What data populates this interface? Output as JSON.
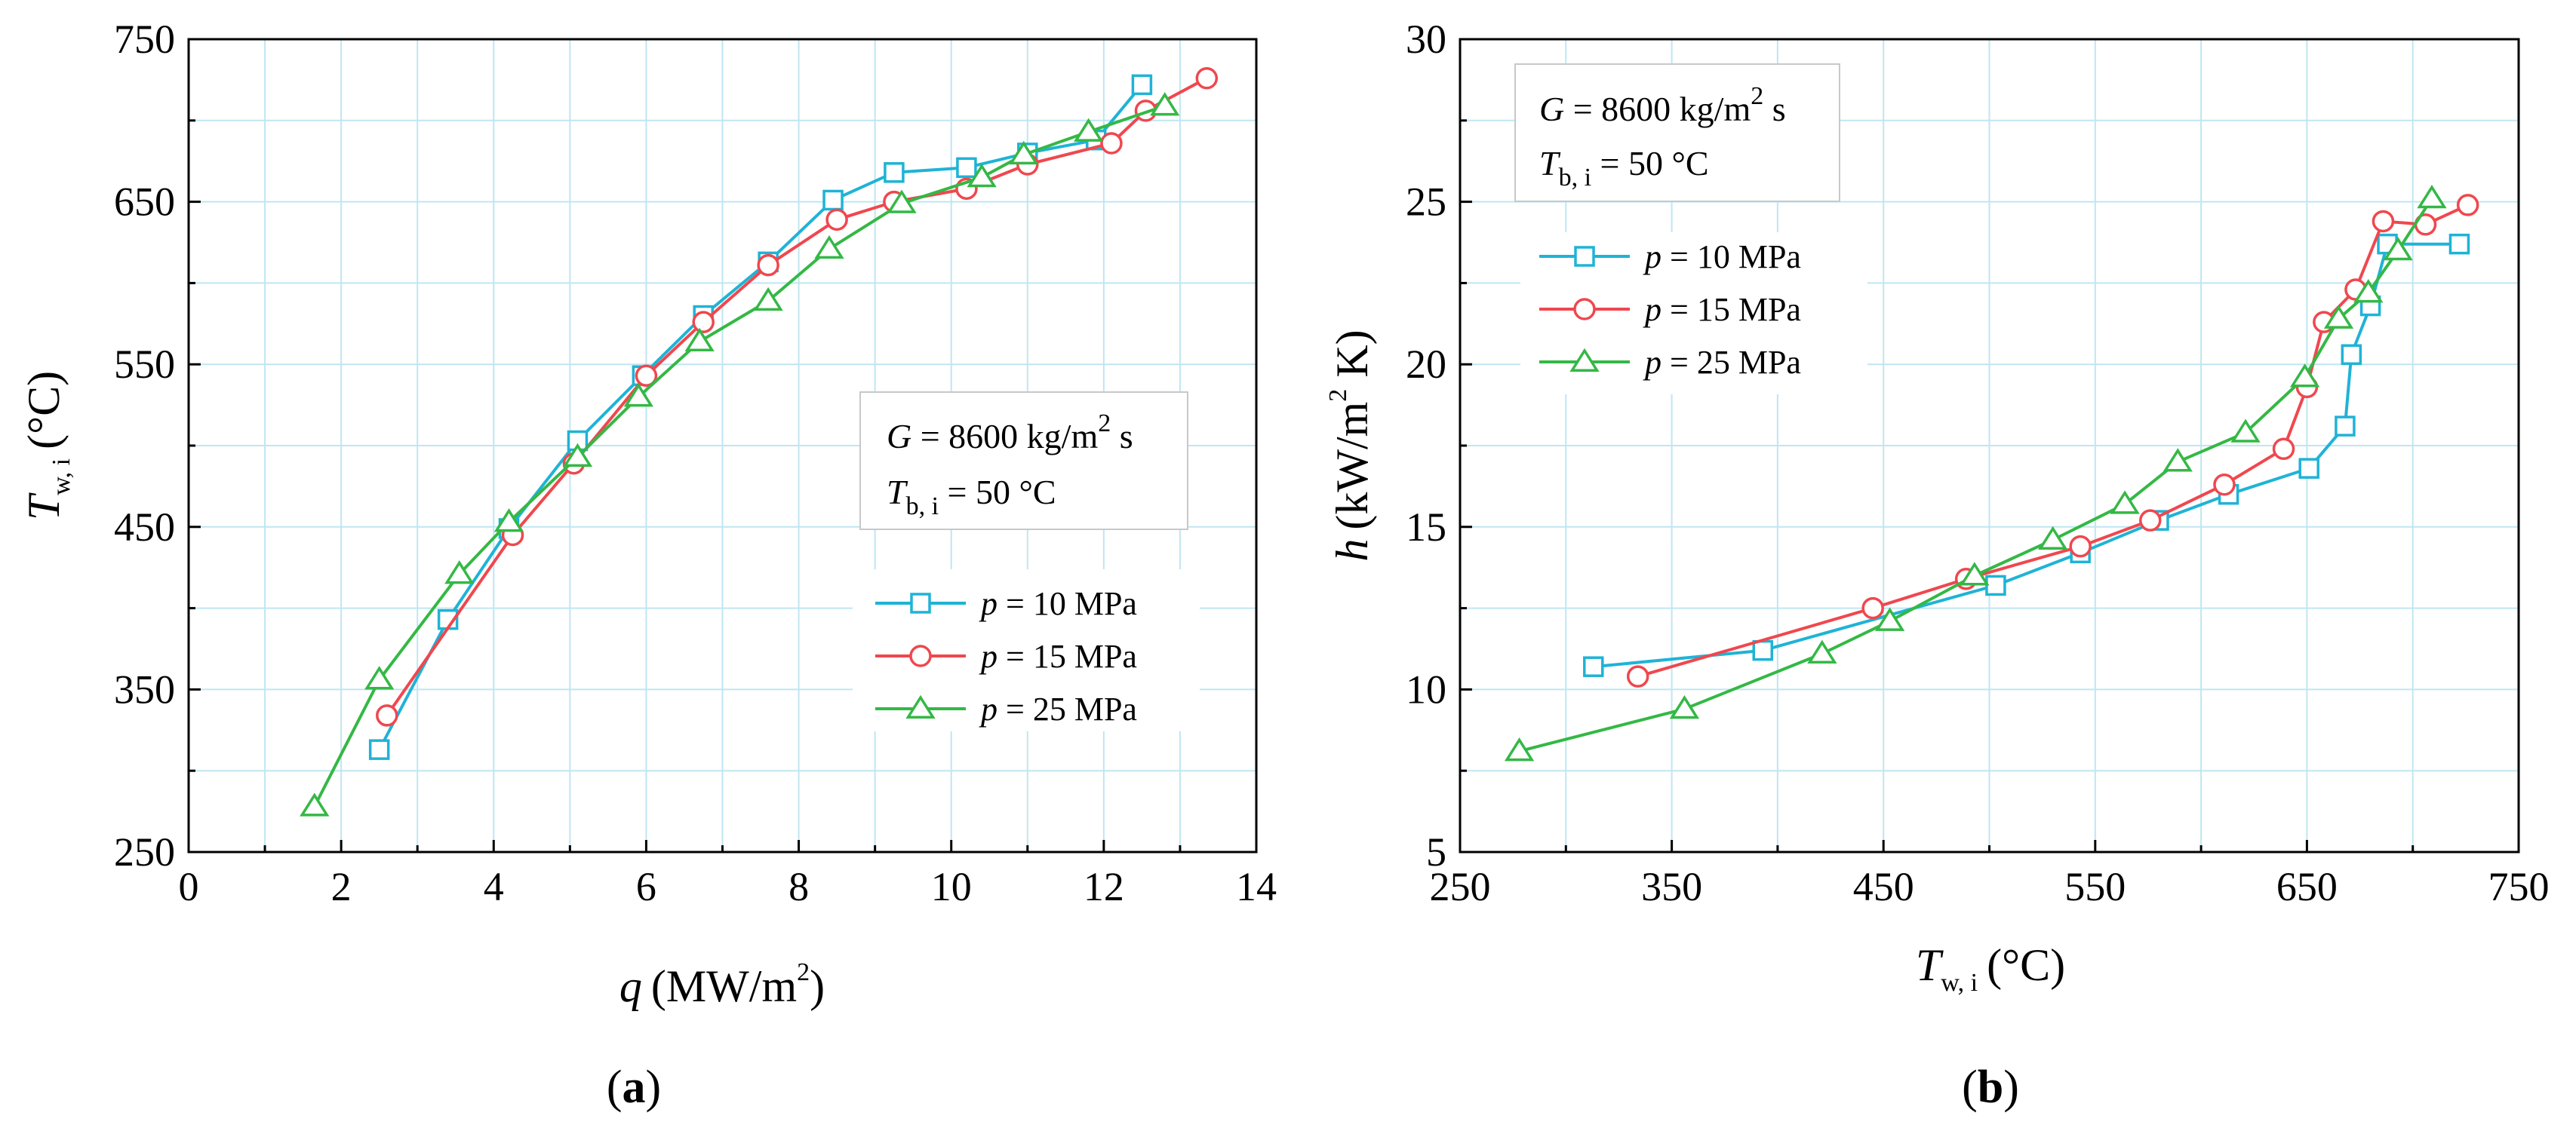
{
  "chart_data": [
    {
      "type": "line",
      "panel": "(a)",
      "panel_letter": "a",
      "xlabel": {
        "var": "q",
        "unit": "(MW/m",
        "sup": "2",
        "close": ")"
      },
      "ylabel": {
        "var": "T",
        "sub": "w, i",
        "unit": "(°C)"
      },
      "xlim": [
        0,
        14
      ],
      "ylim": [
        250,
        750
      ],
      "xticks": [
        0,
        2,
        4,
        6,
        8,
        10,
        12,
        14
      ],
      "yticks": [
        250,
        350,
        450,
        550,
        650,
        750
      ],
      "grid": true,
      "legend_position": "lower-right",
      "condition_box_position": "middle-right",
      "series": [
        {
          "name": "p = 10 MPa",
          "p_label": "p",
          "rest_label": " = 10 MPa",
          "color": "#1fb3d6",
          "marker": "square",
          "points": [
            [
              2.5,
              313
            ],
            [
              3.4,
              393
            ],
            [
              4.2,
              449
            ],
            [
              5.1,
              503
            ],
            [
              5.95,
              543
            ],
            [
              6.75,
              580
            ],
            [
              7.6,
              613
            ],
            [
              8.45,
              651
            ],
            [
              9.25,
              668
            ],
            [
              10.2,
              671
            ],
            [
              11.0,
              680
            ],
            [
              11.9,
              688
            ],
            [
              12.5,
              722
            ]
          ]
        },
        {
          "name": "p = 15 MPa",
          "p_label": "p",
          "rest_label": " = 15 MPa",
          "color": "#f0474e",
          "marker": "circle",
          "points": [
            [
              2.6,
              334
            ],
            [
              4.25,
              445
            ],
            [
              5.05,
              489
            ],
            [
              6.0,
              543
            ],
            [
              6.75,
              576
            ],
            [
              7.6,
              611
            ],
            [
              8.5,
              639
            ],
            [
              9.25,
              650
            ],
            [
              10.2,
              658
            ],
            [
              11.0,
              673
            ],
            [
              12.1,
              686
            ],
            [
              12.55,
              706
            ],
            [
              13.35,
              726
            ]
          ]
        },
        {
          "name": "p = 25 MPa",
          "p_label": "p",
          "rest_label": " = 25 MPa",
          "color": "#34b845",
          "marker": "triangle",
          "points": [
            [
              1.65,
              278
            ],
            [
              2.5,
              356
            ],
            [
              3.55,
              421
            ],
            [
              4.2,
              453
            ],
            [
              5.1,
              493
            ],
            [
              5.9,
              530
            ],
            [
              6.7,
              564
            ],
            [
              7.6,
              589
            ],
            [
              8.4,
              621
            ],
            [
              9.35,
              649
            ],
            [
              10.4,
              665
            ],
            [
              10.95,
              679
            ],
            [
              11.8,
              693
            ],
            [
              12.8,
              709
            ]
          ]
        }
      ],
      "annotation": {
        "G_var": "G",
        "G_text": " = 8600 kg/m",
        "G_sup": "2",
        "G_tail": " s",
        "T_var": "T",
        "T_sub": "b, i",
        "T_text": " = 50 °C"
      }
    },
    {
      "type": "line",
      "panel": "(b)",
      "panel_letter": "b",
      "xlabel": {
        "var": "T",
        "sub": "w, i",
        "unit": "(°C)"
      },
      "ylabel": {
        "var": "h",
        "unit": "(kW/m",
        "sup": "2",
        "close": " K)"
      },
      "xlim": [
        250,
        750
      ],
      "ylim": [
        5,
        30
      ],
      "xticks": [
        250,
        350,
        450,
        550,
        650,
        750
      ],
      "yticks": [
        5,
        10,
        15,
        20,
        25,
        30
      ],
      "grid": true,
      "legend_position": "upper-left",
      "condition_box_position": "top-left",
      "series": [
        {
          "name": "p = 10 MPa",
          "p_label": "p",
          "rest_label": " = 10 MPa",
          "color": "#1fb3d6",
          "marker": "square",
          "points": [
            [
              313,
              10.7
            ],
            [
              393,
              11.2
            ],
            [
              503,
              13.2
            ],
            [
              543,
              14.2
            ],
            [
              580,
              15.2
            ],
            [
              613,
              16.0
            ],
            [
              651,
              16.8
            ],
            [
              668,
              18.1
            ],
            [
              671,
              20.3
            ],
            [
              680,
              21.8
            ],
            [
              688,
              23.7
            ],
            [
              722,
              23.7
            ]
          ]
        },
        {
          "name": "p = 15 MPa",
          "p_label": "p",
          "rest_label": " = 15 MPa",
          "color": "#f0474e",
          "marker": "circle",
          "points": [
            [
              334,
              10.4
            ],
            [
              445,
              12.5
            ],
            [
              489,
              13.4
            ],
            [
              543,
              14.4
            ],
            [
              576,
              15.2
            ],
            [
              611,
              16.3
            ],
            [
              639,
              17.4
            ],
            [
              650,
              19.3
            ],
            [
              658,
              21.3
            ],
            [
              673,
              22.3
            ],
            [
              686,
              24.4
            ],
            [
              706,
              24.3
            ],
            [
              726,
              24.9
            ]
          ]
        },
        {
          "name": "p = 25 MPa",
          "p_label": "p",
          "rest_label": " = 25 MPa",
          "color": "#34b845",
          "marker": "triangle",
          "points": [
            [
              278,
              8.1
            ],
            [
              356,
              9.4
            ],
            [
              421,
              11.1
            ],
            [
              453,
              12.1
            ],
            [
              493,
              13.5
            ],
            [
              530,
              14.6
            ],
            [
              564,
              15.7
            ],
            [
              589,
              17.0
            ],
            [
              621,
              17.9
            ],
            [
              649,
              19.6
            ],
            [
              665,
              21.4
            ],
            [
              679,
              22.2
            ],
            [
              693,
              23.5
            ],
            [
              709,
              25.1
            ]
          ]
        }
      ],
      "annotation": {
        "G_var": "G",
        "G_text": " = 8600 kg/m",
        "G_sup": "2",
        "G_tail": " s",
        "T_var": "T",
        "T_sub": "b, i",
        "T_text": " = 50 °C"
      }
    }
  ]
}
